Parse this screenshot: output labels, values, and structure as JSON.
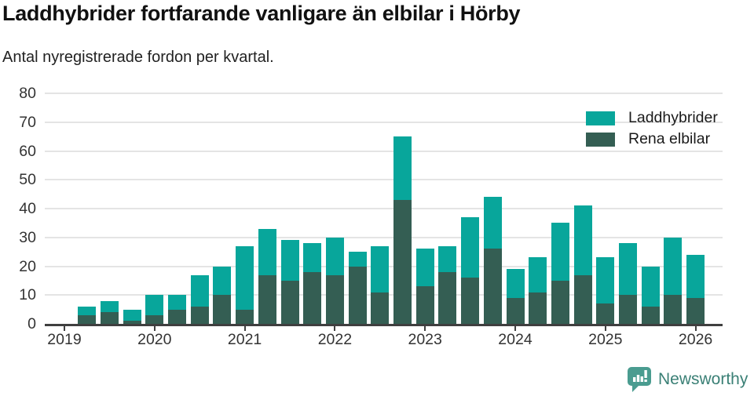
{
  "title": "Laddhybrider fortfarande vanligare än elbilar i Hörby",
  "subtitle": "Antal nyregistrerade fordon per kvartal.",
  "colors": {
    "laddhybrider": "#08a69b",
    "rena_elbilar": "#345e53",
    "axis_text": "#333333",
    "gridline": "#e4e4e4",
    "axis_line": "#3f3f3f",
    "brand_text": "#3b8076",
    "brand_icon": "#4a9c90"
  },
  "legend": {
    "items": [
      {
        "label": "Laddhybrider",
        "color_key": "laddhybrider"
      },
      {
        "label": "Rena elbilar",
        "color_key": "rena_elbilar"
      }
    ]
  },
  "footer": {
    "brand": "Newsworthy"
  },
  "chart_data": {
    "type": "bar",
    "stacked": true,
    "title": "Laddhybrider fortfarande vanligare än elbilar i Hörby",
    "subtitle": "Antal nyregistrerade fordon per kvartal.",
    "xlabel": "",
    "ylabel": "",
    "ylim": [
      0,
      80
    ],
    "y_ticks": [
      0,
      10,
      20,
      30,
      40,
      50,
      60,
      70,
      80
    ],
    "grid": true,
    "legend_position": "top-right",
    "x_tick_labels": [
      "2019",
      "2020",
      "2021",
      "2022",
      "2023",
      "2024",
      "2025",
      "2026"
    ],
    "categories": [
      "2019 Q2",
      "2019 Q3",
      "2019 Q4",
      "2020 Q1",
      "2020 Q2",
      "2020 Q3",
      "2020 Q4",
      "2021 Q1",
      "2021 Q2",
      "2021 Q3",
      "2021 Q4",
      "2022 Q1",
      "2022 Q2",
      "2022 Q3",
      "2022 Q4",
      "2023 Q1",
      "2023 Q2",
      "2023 Q3",
      "2023 Q4",
      "2024 Q1",
      "2024 Q2",
      "2024 Q3",
      "2024 Q4",
      "2025 Q1",
      "2025 Q2",
      "2025 Q3",
      "2025 Q4",
      "2026 Q1"
    ],
    "series": [
      {
        "name": "Rena elbilar",
        "stack_order": "bottom",
        "values": [
          3,
          4,
          1,
          3,
          5,
          6,
          10,
          5,
          17,
          15,
          18,
          17,
          20,
          11,
          43,
          13,
          18,
          16,
          26,
          9,
          11,
          15,
          17,
          7,
          10,
          6,
          10,
          9
        ]
      },
      {
        "name": "Laddhybrider",
        "stack_order": "top",
        "values": [
          3,
          4,
          4,
          7,
          5,
          11,
          10,
          22,
          16,
          14,
          10,
          13,
          5,
          16,
          22,
          13,
          9,
          21,
          18,
          10,
          12,
          20,
          24,
          16,
          18,
          14,
          20,
          15
        ]
      }
    ]
  }
}
